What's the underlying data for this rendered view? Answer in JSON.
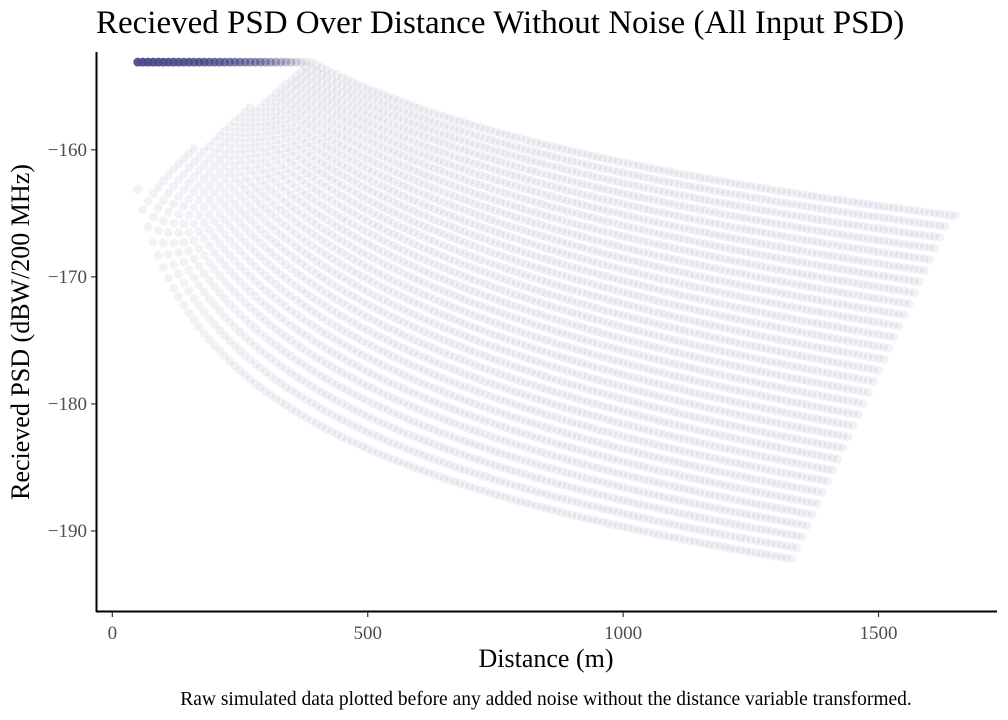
{
  "chart_data": {
    "type": "scatter",
    "title": "Recieved PSD Over Distance Without Noise (All Input PSD)",
    "xlabel": "Distance (m)",
    "ylabel": "Recieved PSD (dBW/200 MHz)",
    "caption": "Raw simulated data plotted before any added noise without the distance variable transformed.",
    "xlim": [
      -30,
      1730
    ],
    "ylim": [
      -196.3,
      -152.3
    ],
    "x_ticks": [
      {
        "value": 0,
        "label": "0"
      },
      {
        "value": 500,
        "label": "500"
      },
      {
        "value": 1000,
        "label": "1000"
      },
      {
        "value": 1500,
        "label": "1500"
      }
    ],
    "y_ticks": [
      {
        "value": -160,
        "label": "−160"
      },
      {
        "value": -170,
        "label": "−170"
      },
      {
        "value": -180,
        "label": "−180"
      },
      {
        "value": -190,
        "label": "−190"
      }
    ],
    "grid": false,
    "legend": "none",
    "point_color": "#4b4d8f",
    "point_alpha": 0.08,
    "series_count": 32,
    "series_step_db": 1,
    "series_peak_psd": -153.1,
    "series_curve": "peak - 20*log10(d/d_start)",
    "series_first": {
      "x_start": 50,
      "x_end": 1330,
      "y_start": -163.1,
      "y_end": -192.2
    },
    "series_last": {
      "x_start": 390,
      "x_end": 1650,
      "y_start": -153.1,
      "y_end": -165.2
    },
    "x_step": 10
  }
}
